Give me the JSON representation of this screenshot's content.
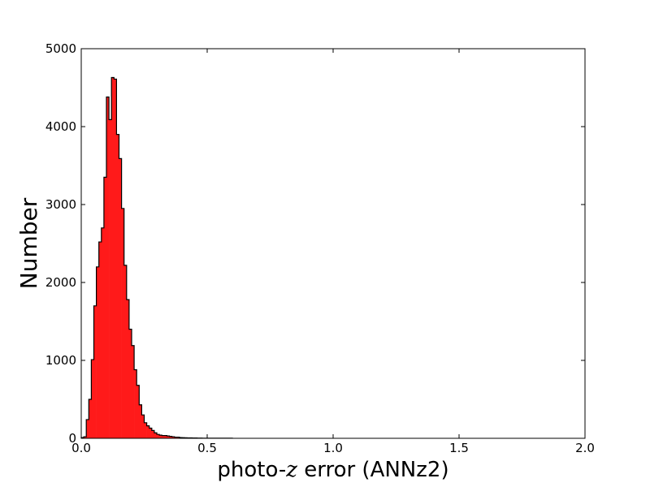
{
  "chart_data": {
    "type": "bar",
    "histogram": true,
    "xlabel_prefix": "photo-",
    "xlabel_var": "z",
    "xlabel_suffix": " error (ANNz2)",
    "ylabel": "Number",
    "xlim": [
      0.0,
      2.0
    ],
    "ylim": [
      0,
      5000
    ],
    "xticks": [
      "0.0",
      "0.5",
      "1.0",
      "1.5",
      "2.0"
    ],
    "yticks": [
      "0",
      "1000",
      "2000",
      "3000",
      "4000",
      "5000"
    ],
    "bin_width": 0.01,
    "bins_start": 0.0,
    "values": [
      10,
      20,
      240,
      500,
      1010,
      1700,
      2200,
      2520,
      2700,
      3350,
      4380,
      4090,
      4630,
      4610,
      3900,
      3590,
      2950,
      2220,
      1780,
      1400,
      1190,
      880,
      680,
      430,
      300,
      200,
      160,
      130,
      100,
      70,
      50,
      40,
      35,
      35,
      30,
      25,
      20,
      15,
      15,
      10,
      8,
      7,
      6,
      5,
      4,
      4,
      3,
      3,
      2,
      2,
      2,
      2,
      1,
      1,
      1,
      1,
      1,
      1,
      1,
      1
    ],
    "fill_color": "#ff1a1a",
    "edge_color": "#000000",
    "grid": false,
    "legend": false
  }
}
